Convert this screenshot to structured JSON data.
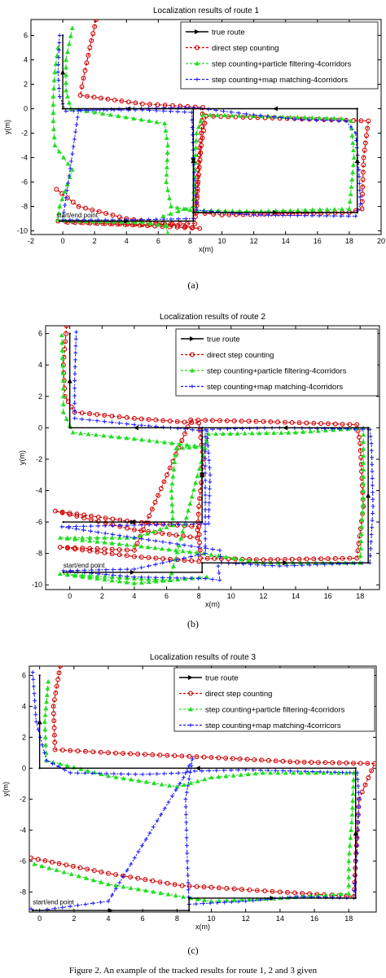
{
  "caption": "Figure 2.   An example of the tracked results for route 1, 2 and 3 given",
  "chart_data": [
    {
      "type": "line",
      "panel_label": "(a)",
      "title": "Localization results of route 1",
      "xlabel": "x(m)",
      "ylabel": "y(m)",
      "xlim": [
        -2,
        20
      ],
      "ylim": [
        -10.3,
        7.3
      ],
      "xticks": [
        -2,
        0,
        2,
        4,
        6,
        8,
        10,
        12,
        14,
        16,
        18,
        20
      ],
      "yticks": [
        -10,
        -8,
        -6,
        -4,
        -2,
        0,
        2,
        4,
        6
      ],
      "annotation": {
        "text": "start/end point",
        "x": -0.4,
        "y": -8.9
      },
      "series": [
        {
          "name": "true route",
          "color": "#000000",
          "marker": "arrow",
          "points": [
            [
              -0.2,
              -9.2
            ],
            [
              8.2,
              -9.2
            ],
            [
              8.2,
              -8.5
            ],
            [
              18.5,
              -8.5
            ],
            [
              18.5,
              0
            ],
            [
              8.2,
              0
            ],
            [
              8.2,
              -8.5
            ],
            [
              8.2,
              0
            ],
            [
              0,
              0
            ],
            [
              0,
              6
            ]
          ]
        },
        {
          "name": "direct step counting",
          "color": "#d00000",
          "marker": "circle",
          "points": [
            [
              2.1,
              7.3
            ],
            [
              1.7,
              5
            ],
            [
              1.3,
              2.5
            ],
            [
              1.1,
              1.1
            ],
            [
              5,
              0.4
            ],
            [
              8.8,
              0.1
            ],
            [
              8.7,
              -2
            ],
            [
              8.5,
              -5
            ],
            [
              8.4,
              -8.5
            ],
            [
              10,
              -8.7
            ],
            [
              14,
              -8.6
            ],
            [
              18,
              -8.5
            ],
            [
              18.8,
              -8.2
            ],
            [
              18.9,
              -4
            ],
            [
              19.2,
              -1
            ],
            [
              9,
              -0.6
            ],
            [
              8.7,
              -3
            ],
            [
              8.5,
              -6
            ],
            [
              8.3,
              -9.4
            ],
            [
              5,
              -9.5
            ],
            [
              0.3,
              -9.3
            ],
            [
              -0.3,
              -9.2
            ],
            [
              8.6,
              -9.8
            ],
            [
              4,
              -9
            ],
            [
              1,
              -8
            ],
            [
              -0.4,
              -6.6
            ]
          ]
        },
        {
          "name": "step counting+particle filtering-4corridors",
          "color": "#22dd22",
          "marker": "triangle",
          "points": [
            [
              0.6,
              6.6
            ],
            [
              0.2,
              4
            ],
            [
              0.2,
              1.5
            ],
            [
              0.5,
              0
            ],
            [
              3,
              -0.5
            ],
            [
              6.4,
              -1.2
            ],
            [
              6.6,
              -3
            ],
            [
              6.5,
              -6
            ],
            [
              6.8,
              -8
            ],
            [
              8,
              -8.3
            ],
            [
              12,
              -8.4
            ],
            [
              18,
              -8.2
            ],
            [
              18.3,
              -4
            ],
            [
              18.1,
              -1
            ],
            [
              17.5,
              -0.8
            ],
            [
              12,
              -0.6
            ],
            [
              8.8,
              -0.5
            ],
            [
              8.4,
              -2
            ],
            [
              8.3,
              -5
            ],
            [
              8.2,
              -8
            ],
            [
              6.3,
              -8.8
            ],
            [
              6.6,
              -10.2
            ],
            [
              6.5,
              -9.6
            ],
            [
              5,
              -9.3
            ],
            [
              1,
              -9.2
            ],
            [
              -0.3,
              -9.1
            ],
            [
              -0.2,
              -8
            ],
            [
              0.6,
              -5
            ],
            [
              -0.5,
              -3
            ],
            [
              -0.6,
              -1
            ],
            [
              -0.6,
              1
            ],
            [
              -0.5,
              3
            ],
            [
              -0.3,
              5
            ]
          ]
        },
        {
          "name": "step counting+map matching-4corridors",
          "color": "#1a1aff",
          "marker": "plus",
          "points": [
            [
              -0.2,
              6
            ],
            [
              -0.3,
              3
            ],
            [
              -0.2,
              1
            ],
            [
              0.2,
              -0.2
            ],
            [
              4,
              0
            ],
            [
              8.2,
              0.1
            ],
            [
              12,
              -0.5
            ],
            [
              15,
              -0.9
            ],
            [
              17.8,
              -1
            ],
            [
              18.4,
              -2
            ],
            [
              18.6,
              -5
            ],
            [
              18.7,
              -7.8
            ],
            [
              18.4,
              -8.8
            ],
            [
              12,
              -8.7
            ],
            [
              8.4,
              -8.3
            ],
            [
              8.2,
              -4
            ],
            [
              8.1,
              -0.3
            ],
            [
              5,
              -0.1
            ],
            [
              1,
              -0.1
            ],
            [
              0,
              -9.1
            ],
            [
              4,
              -9.1
            ],
            [
              8.2,
              -9.0
            ]
          ]
        }
      ]
    },
    {
      "type": "line",
      "panel_label": "(b)",
      "title": "Localization results of route 2",
      "xlabel": "x(m)",
      "ylabel": "y(m)",
      "xlim": [
        -1.5,
        19.2
      ],
      "ylim": [
        -10.3,
        6.5
      ],
      "xticks": [
        0,
        2,
        4,
        6,
        8,
        10,
        12,
        14,
        16,
        18
      ],
      "yticks": [
        -10,
        -8,
        -6,
        -4,
        -2,
        0,
        2,
        4,
        6
      ],
      "annotation": {
        "text": "start/end point",
        "x": -0.4,
        "y": -8.9
      },
      "series": [
        {
          "name": "true route",
          "color": "#000000",
          "marker": "arrow",
          "points": [
            [
              -0.4,
              -9.2
            ],
            [
              8.2,
              -9.2
            ],
            [
              8.2,
              -8.6
            ],
            [
              18.5,
              -8.6
            ],
            [
              18.5,
              0
            ],
            [
              8.2,
              0
            ],
            [
              8.2,
              -6
            ],
            [
              -0.4,
              -6
            ],
            [
              8.2,
              -6
            ],
            [
              8.2,
              0
            ],
            [
              0,
              0
            ],
            [
              0,
              6
            ]
          ]
        },
        {
          "name": "direct step counting",
          "color": "#d00000",
          "marker": "circle",
          "points": [
            [
              -0.2,
              6.5
            ],
            [
              -0.4,
              4
            ],
            [
              -0.3,
              2
            ],
            [
              0.3,
              1
            ],
            [
              4,
              0.6
            ],
            [
              8,
              0.3
            ],
            [
              8.3,
              -2
            ],
            [
              8.0,
              -5
            ],
            [
              7.9,
              -7
            ],
            [
              4,
              -6.5
            ],
            [
              -0.9,
              -5.3
            ],
            [
              4,
              -6
            ],
            [
              8,
              -6.3
            ],
            [
              8.1,
              -8.3
            ],
            [
              12,
              -8.4
            ],
            [
              17.8,
              -8.3
            ],
            [
              18.2,
              -5
            ],
            [
              18,
              -1
            ],
            [
              17.8,
              0.2
            ],
            [
              12,
              0.4
            ],
            [
              7.5,
              0.5
            ],
            [
              4,
              -7.8
            ],
            [
              -0.6,
              -7.6
            ],
            [
              4,
              -8.2
            ],
            [
              8,
              -8.5
            ]
          ]
        },
        {
          "name": "step counting+particle filtering-4corridors",
          "color": "#22dd22",
          "marker": "triangle",
          "points": [
            [
              -0.5,
              5.9
            ],
            [
              -0.4,
              3
            ],
            [
              -0.4,
              1
            ],
            [
              0.2,
              -0.3
            ],
            [
              4,
              -0.7
            ],
            [
              8.2,
              -1.2
            ],
            [
              6.6,
              -1.3
            ],
            [
              6.3,
              -4
            ],
            [
              6.4,
              -6.2
            ],
            [
              4,
              -7
            ],
            [
              -0.6,
              -7
            ],
            [
              4,
              -7.5
            ],
            [
              8.3,
              -8.0
            ],
            [
              12,
              -8.6
            ],
            [
              18.0,
              -8.6
            ],
            [
              18.2,
              -4
            ],
            [
              18.2,
              0
            ],
            [
              14,
              -0.3
            ],
            [
              8.6,
              -0.4
            ],
            [
              6.2,
              -9.7
            ],
            [
              4,
              -9.6
            ],
            [
              -0.6,
              -9.3
            ],
            [
              4,
              -9.9
            ],
            [
              8.5,
              -9.5
            ]
          ]
        },
        {
          "name": "step counting+map matching-4corridors",
          "color": "#1a1aff",
          "marker": "plus",
          "points": [
            [
              0.4,
              6.1
            ],
            [
              0.3,
              3
            ],
            [
              0.3,
              0.6
            ],
            [
              4,
              0.2
            ],
            [
              8.5,
              -0.2
            ],
            [
              8.7,
              -3
            ],
            [
              8.6,
              -6.1
            ],
            [
              4,
              -6.2
            ],
            [
              -0.5,
              -6.3
            ],
            [
              4,
              -7
            ],
            [
              9.3,
              -7.8
            ],
            [
              9.4,
              -8.6
            ],
            [
              13,
              -8.8
            ],
            [
              18.6,
              -8.6
            ],
            [
              18.8,
              -5
            ],
            [
              18.7,
              -1
            ],
            [
              18.6,
              -0.1
            ],
            [
              13,
              0
            ],
            [
              8.4,
              -0.1
            ],
            [
              8.4,
              -8
            ],
            [
              4,
              -9
            ],
            [
              -0.4,
              -9.1
            ],
            [
              4,
              -9.5
            ],
            [
              8.4,
              -9.6
            ],
            [
              9.3,
              -9.7
            ],
            [
              9.2,
              -8.8
            ]
          ]
        }
      ]
    },
    {
      "type": "line",
      "panel_label": "(c)",
      "title": "Localization results of route 3",
      "xlabel": "x(m)",
      "ylabel": "y(m)",
      "xlim": [
        -0.6,
        19.6
      ],
      "ylim": [
        -9.3,
        6.6
      ],
      "xticks": [
        0,
        2,
        4,
        6,
        8,
        10,
        12,
        14,
        16,
        18
      ],
      "yticks": [
        -8,
        -6,
        -4,
        -2,
        0,
        2,
        4,
        6
      ],
      "annotation": {
        "text": "start/end point",
        "x": -0.4,
        "y": -8.8
      },
      "series": [
        {
          "name": "true route",
          "color": "#000000",
          "marker": "arrow",
          "points": [
            [
              -0.4,
              -9.2
            ],
            [
              8.7,
              -9.2
            ],
            [
              8.7,
              -8.4
            ],
            [
              18.4,
              -8.4
            ],
            [
              18.4,
              0
            ],
            [
              0,
              0
            ],
            [
              0,
              6
            ]
          ]
        },
        {
          "name": "direct step counting",
          "color": "#d00000",
          "marker": "circle",
          "points": [
            [
              1.2,
              6.6
            ],
            [
              0.8,
              4
            ],
            [
              0.9,
              1.2
            ],
            [
              4,
              1.0
            ],
            [
              10,
              0.7
            ],
            [
              15,
              0.4
            ],
            [
              19.5,
              0.3
            ],
            [
              18.6,
              -2
            ],
            [
              18.4,
              -6
            ],
            [
              18.3,
              -8.3
            ],
            [
              14,
              -8.0
            ],
            [
              10,
              -7.7
            ],
            [
              8.3,
              -7.6
            ],
            [
              4,
              -6.8
            ],
            [
              -0.5,
              -5.8
            ]
          ]
        },
        {
          "name": "step counting+particle filtering-4corridors",
          "color": "#22dd22",
          "marker": "triangle",
          "points": [
            [
              0.5,
              5.6
            ],
            [
              0.3,
              3
            ],
            [
              0.4,
              0.5
            ],
            [
              4,
              -0.5
            ],
            [
              8,
              -1.2
            ],
            [
              10,
              -0.6
            ],
            [
              13,
              -0.3
            ],
            [
              18.3,
              -0.3
            ],
            [
              18.2,
              -3
            ],
            [
              18.0,
              -6
            ],
            [
              18.0,
              -8.1
            ],
            [
              14,
              -8.4
            ],
            [
              10,
              -8.6
            ],
            [
              8.8,
              -8.4
            ],
            [
              4,
              -7.5
            ],
            [
              -0.3,
              -6.2
            ]
          ]
        },
        {
          "name": "step counting+map matching-4corricors",
          "color": "#1a1aff",
          "marker": "plus",
          "points": [
            [
              -0.4,
              6.2
            ],
            [
              -0.2,
              3
            ],
            [
              0.4,
              0.5
            ],
            [
              1.8,
              -0.3
            ],
            [
              6,
              -0.4
            ],
            [
              8.5,
              -0.3
            ],
            [
              8.9,
              0.6
            ],
            [
              8.5,
              -2
            ],
            [
              8.6,
              -6
            ],
            [
              8.7,
              -8.8
            ],
            [
              12,
              -8.6
            ],
            [
              15,
              -8.3
            ],
            [
              18.3,
              -8.4
            ],
            [
              18.5,
              -5
            ],
            [
              18.6,
              -2
            ],
            [
              18.5,
              -0.3
            ],
            [
              12,
              -0.1
            ],
            [
              8.6,
              -0.2
            ],
            [
              4,
              -8.6
            ],
            [
              0,
              -9.2
            ],
            [
              -0.5,
              -9.1
            ]
          ]
        }
      ]
    }
  ]
}
